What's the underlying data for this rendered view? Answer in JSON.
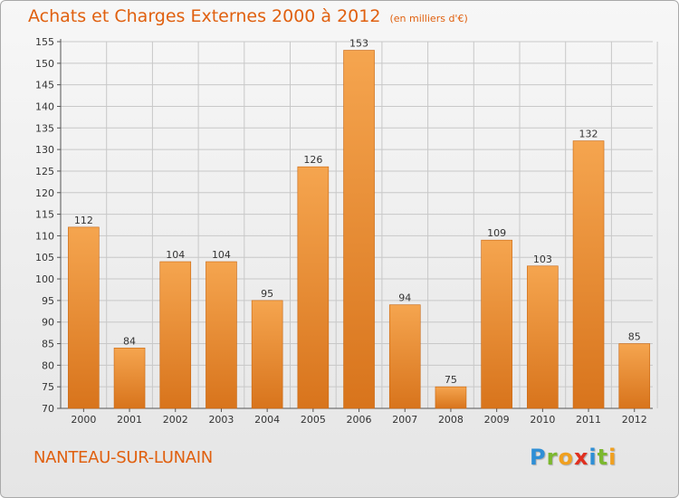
{
  "header": {
    "title": "Achats et Charges Externes 2000 à 2012",
    "unit": "(en milliers d'€)"
  },
  "commune": "NANTEAU-SUR-LUNAIN",
  "logo": {
    "text": "Proxiti",
    "letters": [
      {
        "ch": "P",
        "color": "#2f8fd6"
      },
      {
        "ch": "r",
        "color": "#7cb82f"
      },
      {
        "ch": "o",
        "color": "#f0a020"
      },
      {
        "ch": "x",
        "color": "#e03020"
      },
      {
        "ch": "i",
        "color": "#2f8fd6"
      },
      {
        "ch": "t",
        "color": "#7cb82f"
      },
      {
        "ch": "i",
        "color": "#f0a020"
      }
    ]
  },
  "colors": {
    "title": "#e0600f",
    "bar_light": "#f5a54f",
    "bar_dark": "#d8741c",
    "bar_edge": "#c8650f",
    "grid": "#c8c8c8"
  },
  "chart_data": {
    "type": "bar",
    "title": "Achats et Charges Externes 2000 à 2012",
    "subtitle": "(en milliers d'€)",
    "xlabel": "",
    "ylabel": "",
    "categories": [
      "2000",
      "2001",
      "2002",
      "2003",
      "2004",
      "2005",
      "2006",
      "2007",
      "2008",
      "2009",
      "2010",
      "2011",
      "2012"
    ],
    "values": [
      112,
      84,
      104,
      104,
      95,
      126,
      153,
      94,
      75,
      109,
      103,
      132,
      85
    ],
    "ylim": [
      70,
      155
    ],
    "yticks": [
      70,
      75,
      80,
      85,
      90,
      95,
      100,
      105,
      110,
      115,
      120,
      125,
      130,
      135,
      140,
      145,
      150,
      155
    ],
    "grid": true,
    "legend": "none"
  }
}
